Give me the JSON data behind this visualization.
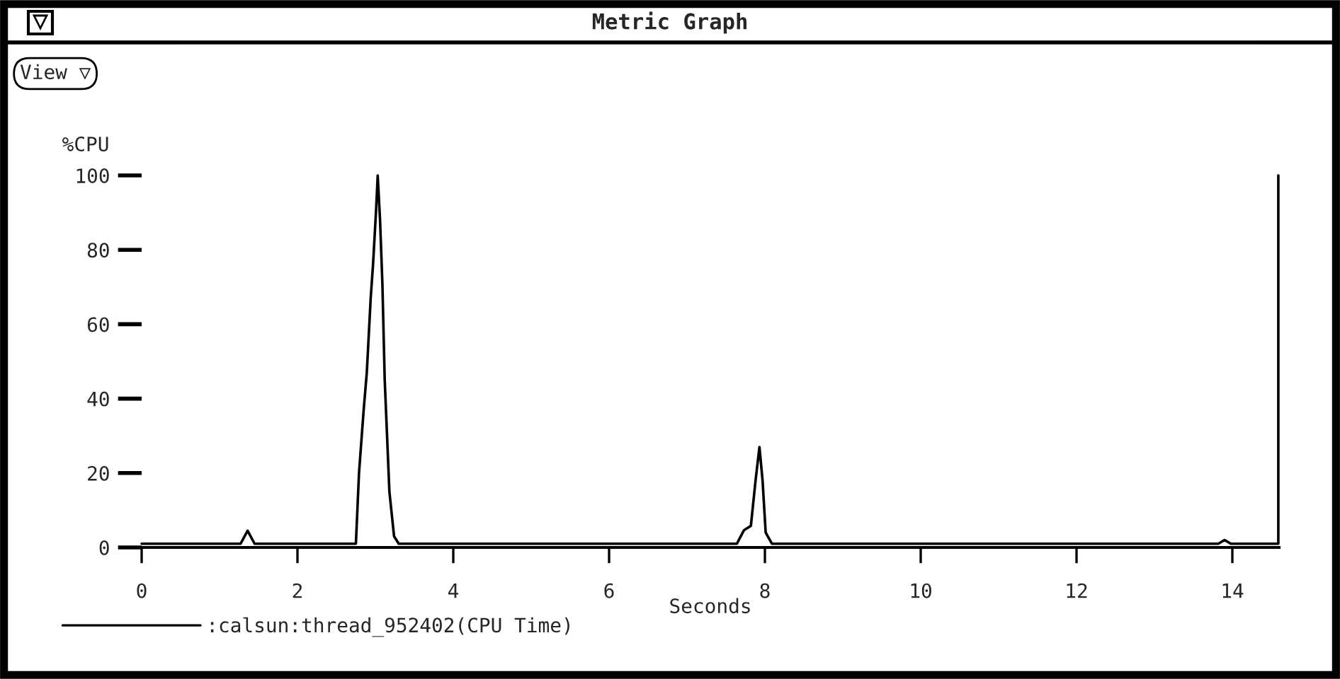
{
  "chart_data": {
    "type": "line",
    "title": "Metric Graph",
    "xlabel": "Seconds",
    "ylabel": "%CPU",
    "annotations": [
      "View ▽"
    ],
    "xlim": [
      0,
      14.6
    ],
    "ylim": [
      0,
      100
    ],
    "xticks": [
      0,
      2,
      4,
      6,
      8,
      10,
      12,
      14
    ],
    "yticks": [
      0,
      20,
      40,
      60,
      80,
      100
    ],
    "grid": false,
    "legend": "bottom left",
    "marker": "none",
    "line_style": "solid",
    "series": [
      {
        "name": ":calsun:thread_952402(CPU Time)",
        "color": "#000000",
        "x": [
          0,
          1.27,
          1.36,
          1.45,
          2.75,
          2.79,
          2.85,
          2.89,
          2.94,
          2.97,
          3.01,
          3.03,
          3.06,
          3.09,
          3.12,
          3.18,
          3.24,
          3.3,
          7.64,
          7.73,
          7.82,
          7.88,
          7.93,
          7.97,
          8.01,
          8.09,
          13.82,
          13.9,
          13.98,
          14.59,
          14.59
        ],
        "values": [
          1,
          1,
          4.5,
          1,
          1,
          20,
          37,
          47,
          67,
          76,
          91,
          100,
          88,
          71,
          45,
          15,
          3,
          1,
          1,
          4.6,
          5.8,
          18,
          27,
          18,
          4,
          1,
          1,
          2,
          1,
          1,
          100
        ]
      }
    ]
  }
}
